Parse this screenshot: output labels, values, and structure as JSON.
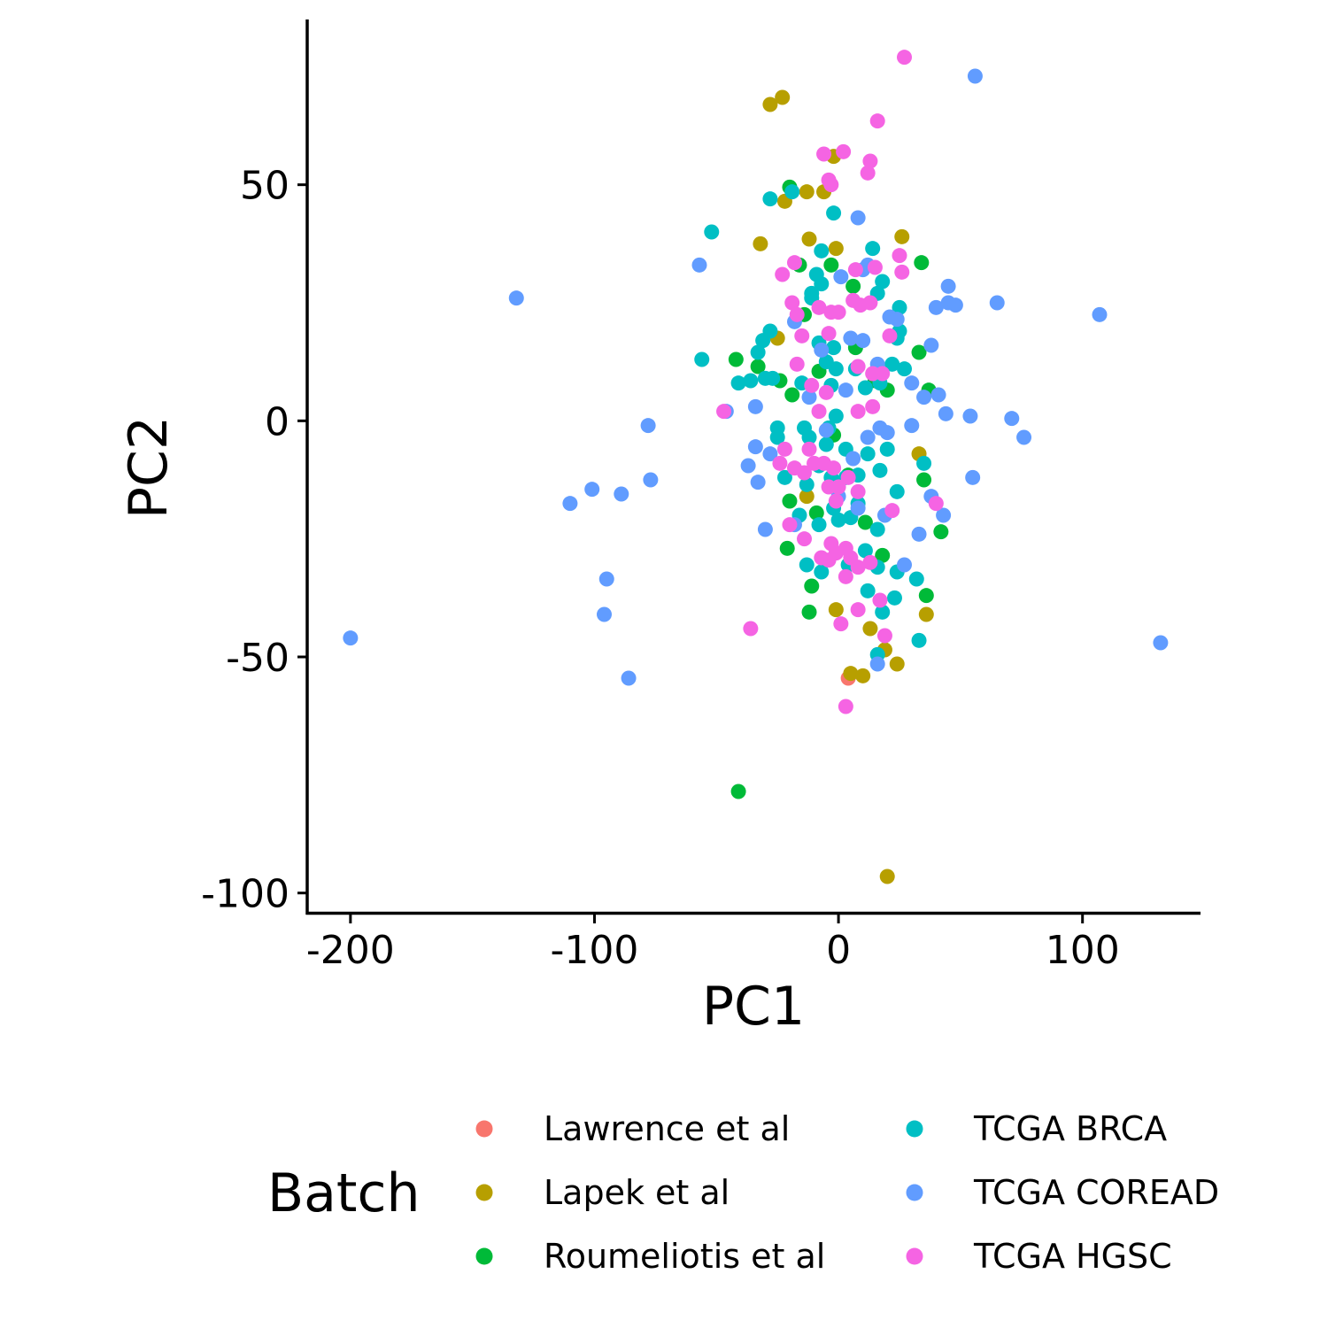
{
  "chart_data": {
    "type": "scatter",
    "xlabel": "PC1",
    "ylabel": "PC2",
    "xlim": [
      -217,
      148
    ],
    "ylim": [
      -104,
      85
    ],
    "x_ticks": [
      -200,
      -100,
      0,
      100
    ],
    "y_ticks": [
      -100,
      -50,
      0,
      50
    ],
    "x_tick_labels": [
      "-200",
      "-100",
      "0",
      "100"
    ],
    "y_tick_labels": [
      "-100",
      "-50",
      "0",
      "50"
    ],
    "grid": false,
    "legend": {
      "title": "Batch",
      "position": "bottom"
    },
    "series": [
      {
        "name": "Lawrence et al",
        "color": "#F8766D",
        "points": [
          [
            4,
            -54.5
          ]
        ]
      },
      {
        "name": "Lapek et al",
        "color": "#B79F00",
        "points": [
          [
            -28,
            67
          ],
          [
            -23,
            68.5
          ],
          [
            -2,
            56
          ],
          [
            -13,
            48.5
          ],
          [
            -6,
            48.5
          ],
          [
            -22,
            46.5
          ],
          [
            -32,
            37.5
          ],
          [
            -12,
            38.5
          ],
          [
            -1,
            36.5
          ],
          [
            26,
            39
          ],
          [
            -25,
            17.5
          ],
          [
            33,
            -7
          ],
          [
            -13,
            -16
          ],
          [
            -1,
            -40
          ],
          [
            13,
            -44
          ],
          [
            19,
            -48.5
          ],
          [
            24,
            -51.5
          ],
          [
            5,
            -53.5
          ],
          [
            10,
            -54
          ],
          [
            36,
            -41
          ],
          [
            20,
            -96.5
          ]
        ]
      },
      {
        "name": "Roumeliotis et al",
        "color": "#00BA38",
        "points": [
          [
            -20,
            49.5
          ],
          [
            -16,
            33
          ],
          [
            -3,
            33
          ],
          [
            34,
            33.5
          ],
          [
            -14,
            22.5
          ],
          [
            6,
            28.5
          ],
          [
            -42,
            13
          ],
          [
            -33,
            11.5
          ],
          [
            -24,
            8.5
          ],
          [
            -19,
            5.5
          ],
          [
            7,
            15.5
          ],
          [
            20,
            6.5
          ],
          [
            37,
            6.5
          ],
          [
            -8,
            10.5
          ],
          [
            15,
            8.5
          ],
          [
            33,
            14.5
          ],
          [
            -20,
            -17
          ],
          [
            -9,
            -19.5
          ],
          [
            -21,
            -27
          ],
          [
            -11,
            -35
          ],
          [
            -12,
            -40.5
          ],
          [
            11,
            -21.5
          ],
          [
            35,
            -12.5
          ],
          [
            42,
            -23.5
          ],
          [
            36,
            -37
          ],
          [
            18,
            -28.5
          ],
          [
            -41,
            -78.5
          ],
          [
            -2,
            -3
          ],
          [
            4,
            -11.5
          ]
        ]
      },
      {
        "name": "TCGA BRCA",
        "color": "#00BFC4",
        "points": [
          [
            -52,
            40
          ],
          [
            -28,
            47
          ],
          [
            -19,
            48.5
          ],
          [
            -2,
            44
          ],
          [
            -7,
            36
          ],
          [
            14,
            36.5
          ],
          [
            -11,
            27
          ],
          [
            -7,
            29
          ],
          [
            18,
            29.5
          ],
          [
            16,
            27
          ],
          [
            -28,
            19
          ],
          [
            -31,
            17
          ],
          [
            -8,
            16.5
          ],
          [
            -56,
            13
          ],
          [
            -33,
            14.5
          ],
          [
            -41,
            8
          ],
          [
            -36,
            8.5
          ],
          [
            -30,
            9
          ],
          [
            -27,
            9
          ],
          [
            -15,
            8
          ],
          [
            -3,
            7.5
          ],
          [
            -1,
            11
          ],
          [
            11,
            7
          ],
          [
            17,
            8
          ],
          [
            -5,
            12.5
          ],
          [
            -2,
            15.5
          ],
          [
            25,
            24
          ],
          [
            25,
            19
          ],
          [
            24,
            17.5
          ],
          [
            27,
            11
          ],
          [
            22,
            12
          ],
          [
            -9,
            31
          ],
          [
            -11,
            26
          ],
          [
            -25,
            -1.5
          ],
          [
            -25,
            -3.5
          ],
          [
            -14,
            -1.5
          ],
          [
            -12,
            -3.5
          ],
          [
            -4,
            -1.5
          ],
          [
            -5,
            -5
          ],
          [
            3,
            -6
          ],
          [
            12,
            -7
          ],
          [
            20,
            -6
          ],
          [
            -22,
            -12
          ],
          [
            -13,
            -13.5
          ],
          [
            -8,
            -9.5
          ],
          [
            -3,
            -12
          ],
          [
            3,
            -12
          ],
          [
            8,
            -11.5
          ],
          [
            17,
            -10.5
          ],
          [
            24,
            -15
          ],
          [
            35,
            -9
          ],
          [
            -16,
            -20
          ],
          [
            -8,
            -22
          ],
          [
            -2,
            -18.5
          ],
          [
            0,
            -21
          ],
          [
            5,
            -20.5
          ],
          [
            8,
            -17.5
          ],
          [
            16,
            -23
          ],
          [
            -13,
            -30.5
          ],
          [
            -7,
            -32
          ],
          [
            4,
            -30.5
          ],
          [
            11,
            -27.5
          ],
          [
            16,
            -31
          ],
          [
            24,
            -32
          ],
          [
            32,
            -33.5
          ],
          [
            12,
            -36
          ],
          [
            23,
            -37.5
          ],
          [
            18,
            -40.5
          ],
          [
            16,
            -49.5
          ],
          [
            33,
            -46.5
          ],
          [
            7,
            11
          ],
          [
            -1,
            1
          ]
        ]
      },
      {
        "name": "TCGA COREAD",
        "color": "#619CFF",
        "points": [
          [
            56,
            73
          ],
          [
            -57,
            33
          ],
          [
            -132,
            26
          ],
          [
            8,
            43
          ],
          [
            12,
            33
          ],
          [
            1,
            30.5
          ],
          [
            10,
            32
          ],
          [
            45,
            28.5
          ],
          [
            45,
            25
          ],
          [
            48,
            24.5
          ],
          [
            40,
            24
          ],
          [
            65,
            25
          ],
          [
            107,
            22.5
          ],
          [
            -18,
            21
          ],
          [
            10,
            17
          ],
          [
            24,
            21.5
          ],
          [
            21,
            22
          ],
          [
            38,
            16
          ],
          [
            30,
            8
          ],
          [
            16,
            12
          ],
          [
            5,
            17.5
          ],
          [
            -7,
            15
          ],
          [
            35,
            5
          ],
          [
            41,
            5.5
          ],
          [
            44,
            1.5
          ],
          [
            54,
            1
          ],
          [
            71,
            0.5
          ],
          [
            76,
            -3.5
          ],
          [
            -34,
            3
          ],
          [
            -46,
            2
          ],
          [
            -78,
            -1
          ],
          [
            -34,
            -5.5
          ],
          [
            -28,
            -7
          ],
          [
            -37,
            -9.5
          ],
          [
            -33,
            -13
          ],
          [
            -30,
            -23
          ],
          [
            -18,
            -22
          ],
          [
            -77,
            -12.5
          ],
          [
            -101,
            -14.5
          ],
          [
            -110,
            -17.5
          ],
          [
            -89,
            -15.5
          ],
          [
            -95,
            -33.5
          ],
          [
            -96,
            -41
          ],
          [
            -86,
            -54.5
          ],
          [
            -200,
            -46
          ],
          [
            132,
            -47
          ],
          [
            55,
            -12
          ],
          [
            43,
            -20
          ],
          [
            38,
            -16
          ],
          [
            30,
            -1
          ],
          [
            17,
            -1.5
          ],
          [
            20,
            -2.5
          ],
          [
            8,
            -18.5
          ],
          [
            19,
            -20
          ],
          [
            -5,
            -2
          ],
          [
            6,
            -8
          ],
          [
            12,
            -3.5
          ],
          [
            0,
            -16
          ],
          [
            16,
            -51.5
          ],
          [
            -12,
            5
          ],
          [
            3,
            6.5
          ],
          [
            33,
            -24
          ],
          [
            27,
            -30.5
          ]
        ]
      },
      {
        "name": "TCGA HGSC",
        "color": "#F564E3",
        "points": [
          [
            27,
            77
          ],
          [
            16,
            63.5
          ],
          [
            -6,
            56.5
          ],
          [
            2,
            57
          ],
          [
            13,
            55
          ],
          [
            12,
            52.5
          ],
          [
            -3,
            50
          ],
          [
            -4,
            51
          ],
          [
            -18,
            33.5
          ],
          [
            -23,
            31
          ],
          [
            15,
            32.5
          ],
          [
            26,
            31.5
          ],
          [
            25,
            35
          ],
          [
            7,
            32
          ],
          [
            -19,
            25
          ],
          [
            -17,
            22.5
          ],
          [
            -8,
            24
          ],
          [
            -3,
            23
          ],
          [
            0,
            23
          ],
          [
            6,
            25.5
          ],
          [
            9,
            24.5
          ],
          [
            13,
            25
          ],
          [
            21,
            18
          ],
          [
            -15,
            18
          ],
          [
            -4,
            18.5
          ],
          [
            -17,
            12
          ],
          [
            8,
            11.5
          ],
          [
            14,
            10
          ],
          [
            18,
            10
          ],
          [
            -11,
            7.5
          ],
          [
            -5,
            6
          ],
          [
            -47,
            2
          ],
          [
            -22,
            -6
          ],
          [
            -12,
            -6
          ],
          [
            -24,
            -9
          ],
          [
            -18,
            -10
          ],
          [
            -14,
            -11
          ],
          [
            -10,
            -9
          ],
          [
            -6,
            -9
          ],
          [
            -2,
            -10
          ],
          [
            -4,
            -14
          ],
          [
            0,
            -14
          ],
          [
            4,
            -12
          ],
          [
            -1,
            -17
          ],
          [
            8,
            -15
          ],
          [
            22,
            -19
          ],
          [
            40,
            -17.5
          ],
          [
            -20,
            -22
          ],
          [
            -14,
            -25
          ],
          [
            -3,
            -26
          ],
          [
            -1,
            -28
          ],
          [
            3,
            -27
          ],
          [
            -7,
            -29
          ],
          [
            -4,
            -29.5
          ],
          [
            5,
            -29
          ],
          [
            8,
            -31
          ],
          [
            13,
            -30
          ],
          [
            3,
            -33
          ],
          [
            17,
            -38
          ],
          [
            8,
            -40
          ],
          [
            -36,
            -44
          ],
          [
            1,
            -43
          ],
          [
            19,
            -45.5
          ],
          [
            3,
            -60.5
          ],
          [
            8,
            2
          ],
          [
            14,
            3
          ],
          [
            -8,
            2
          ]
        ]
      }
    ]
  }
}
